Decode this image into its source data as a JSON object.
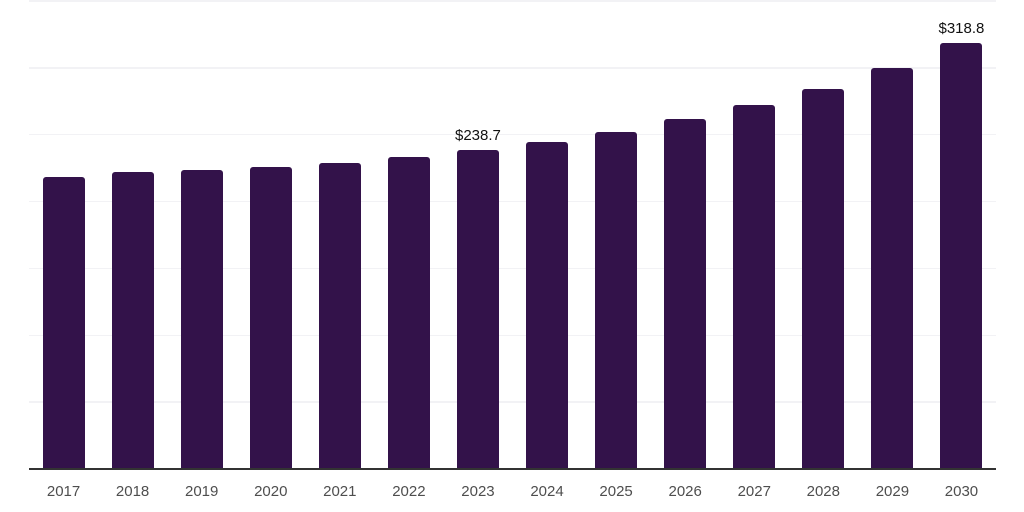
{
  "chart": {
    "background_color": "#ffffff",
    "bar_color": "#33124a",
    "gridline_color": "#f2f2f5",
    "axis_line_color": "#333333",
    "year_label_color": "#4e4e4e",
    "value_label_color": "#111111"
  },
  "chart_data": {
    "type": "bar",
    "title": "",
    "xlabel": "",
    "ylabel": "",
    "categories": [
      "2017",
      "2018",
      "2019",
      "2020",
      "2021",
      "2022",
      "2023",
      "2024",
      "2025",
      "2026",
      "2027",
      "2028",
      "2029",
      "2030"
    ],
    "values": [
      218.5,
      221.8,
      223.5,
      226.0,
      229.0,
      233.4,
      238.7,
      244.6,
      252.2,
      261.8,
      272.1,
      284.5,
      300.2,
      318.8
    ],
    "data_labels": {
      "2023": "$238.7",
      "2030": "$318.8"
    },
    "ylim": [
      0,
      350
    ],
    "gridline_step": 50,
    "grid": "horizontal",
    "y_tick_labels_visible": false,
    "legend_position": "none",
    "currency_prefix": "$"
  }
}
